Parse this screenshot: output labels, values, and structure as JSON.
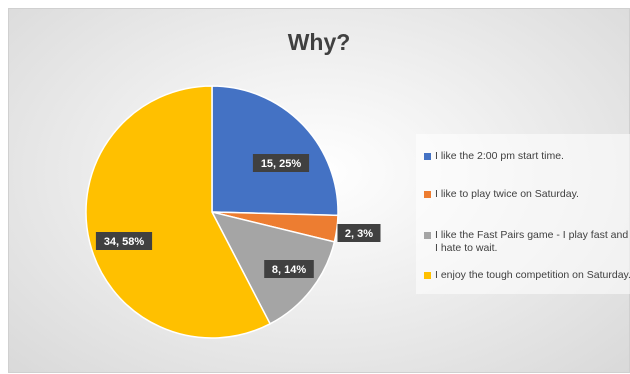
{
  "chart_data": {
    "type": "pie",
    "title": "Why?",
    "categories": [
      "I like the 2:00 pm start time.",
      "I like to play twice on Saturday.",
      "I like the Fast Pairs game - I play fast and I hate to wait.",
      "I enjoy the tough competition on Saturday."
    ],
    "values": [
      15,
      2,
      8,
      34
    ],
    "data_labels": [
      "15, 25%",
      "2, 3%",
      "8, 14%",
      "34, 58%"
    ],
    "colors": [
      "#4472C4",
      "#ED7D31",
      "#A5A5A5",
      "#FFC000"
    ],
    "legend_position": "right"
  }
}
